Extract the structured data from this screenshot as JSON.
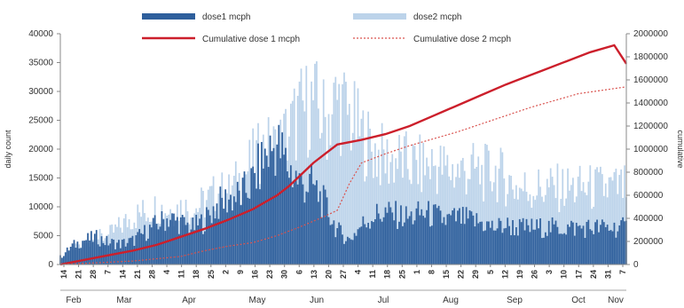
{
  "chart_data": {
    "type": "bar",
    "title": "",
    "xlabel": "",
    "ylabel_left": "daily count",
    "ylabel_right": "cumulative",
    "ylim_left": [
      0,
      40000
    ],
    "ylim_right": [
      0,
      2000000
    ],
    "y_ticks_left": [
      "0",
      "5000",
      "10000",
      "15000",
      "20000",
      "25000",
      "30000",
      "35000",
      "40000"
    ],
    "y_ticks_right": [
      "0",
      "200000",
      "400000",
      "600000",
      "800000",
      "1000000",
      "1200000",
      "1400000",
      "1600000",
      "1800000",
      "2000000"
    ],
    "legend": {
      "dose1": "dose1 mcph",
      "dose2": "dose2 mcph",
      "cum1": "Cumulative dose 1 mcph",
      "cum2": "Cumulative dose 2 mcph"
    },
    "colors": {
      "dose1": "#2e5f9c",
      "dose2": "#bcd3ea",
      "cum1": "#cc1f2b",
      "cum2": "#d9534f"
    },
    "months": [
      "Feb",
      "Mar",
      "Apr",
      "May",
      "Jun",
      "Jul",
      "Aug",
      "Sep",
      "Oct",
      "Nov"
    ],
    "date_labels": [
      "14",
      "21",
      "28",
      "7",
      "14",
      "21",
      "28",
      "4",
      "11",
      "18",
      "25",
      "2",
      "9",
      "16",
      "23",
      "30",
      "6",
      "13",
      "20",
      "27",
      "4",
      "11",
      "18",
      "25",
      "1",
      "8",
      "15",
      "22",
      "29",
      "5",
      "12",
      "19",
      "26",
      "3",
      "10",
      "17",
      "24",
      "31",
      "7"
    ],
    "series": [
      {
        "name": "dose1 mcph",
        "kind": "daily",
        "points": [
          [
            0,
            1500
          ],
          [
            7,
            3800
          ],
          [
            14,
            5000
          ],
          [
            21,
            5500
          ],
          [
            28,
            4500
          ],
          [
            35,
            4200
          ],
          [
            42,
            4800
          ],
          [
            49,
            6500
          ],
          [
            56,
            8200
          ],
          [
            63,
            9500
          ],
          [
            70,
            8500
          ],
          [
            77,
            7500
          ],
          [
            84,
            9000
          ],
          [
            91,
            12000
          ],
          [
            98,
            13500
          ],
          [
            105,
            14000
          ],
          [
            112,
            17000
          ],
          [
            119,
            22000
          ],
          [
            126,
            24500
          ],
          [
            133,
            19500
          ],
          [
            140,
            16500
          ],
          [
            147,
            16000
          ],
          [
            154,
            12000
          ],
          [
            161,
            7000
          ],
          [
            168,
            5000
          ],
          [
            175,
            8000
          ],
          [
            182,
            10000
          ],
          [
            189,
            10500
          ],
          [
            196,
            10000
          ],
          [
            203,
            9500
          ],
          [
            210,
            10500
          ],
          [
            217,
            10000
          ],
          [
            224,
            9000
          ],
          [
            231,
            9500
          ],
          [
            238,
            9000
          ],
          [
            245,
            8500
          ],
          [
            252,
            7500
          ],
          [
            259,
            8000
          ],
          [
            266,
            7500
          ]
        ]
      },
      {
        "name": "dose2 mcph",
        "kind": "daily",
        "points": [
          [
            0,
            1200
          ],
          [
            7,
            3000
          ],
          [
            14,
            4500
          ],
          [
            21,
            5500
          ],
          [
            28,
            6000
          ],
          [
            35,
            8000
          ],
          [
            42,
            10000
          ],
          [
            49,
            11000
          ],
          [
            56,
            12000
          ],
          [
            63,
            11500
          ],
          [
            70,
            12000
          ],
          [
            77,
            11500
          ],
          [
            84,
            13000
          ],
          [
            91,
            15000
          ],
          [
            98,
            15000
          ],
          [
            105,
            18000
          ],
          [
            112,
            21500
          ],
          [
            119,
            24000
          ],
          [
            126,
            24000
          ],
          [
            133,
            28000
          ],
          [
            140,
            32000
          ],
          [
            147,
            34000
          ],
          [
            154,
            30000
          ],
          [
            161,
            34500
          ],
          [
            168,
            31000
          ],
          [
            175,
            27000
          ],
          [
            182,
            24000
          ],
          [
            189,
            22000
          ],
          [
            196,
            22000
          ],
          [
            203,
            21000
          ],
          [
            210,
            20500
          ],
          [
            217,
            21000
          ],
          [
            224,
            20000
          ],
          [
            231,
            19500
          ],
          [
            238,
            20000
          ],
          [
            245,
            19000
          ],
          [
            252,
            19500
          ],
          [
            259,
            18000
          ],
          [
            266,
            16000
          ]
        ]
      },
      {
        "name": "Cumulative dose 1 mcph",
        "kind": "cumulative",
        "points": [
          [
            0,
            0
          ],
          [
            14,
            40000
          ],
          [
            28,
            80000
          ],
          [
            42,
            120000
          ],
          [
            56,
            170000
          ],
          [
            70,
            240000
          ],
          [
            84,
            310000
          ],
          [
            98,
            390000
          ],
          [
            112,
            480000
          ],
          [
            126,
            600000
          ],
          [
            133,
            680000
          ],
          [
            140,
            780000
          ],
          [
            147,
            880000
          ],
          [
            154,
            960000
          ],
          [
            161,
            1040000
          ],
          [
            175,
            1080000
          ],
          [
            189,
            1130000
          ],
          [
            203,
            1200000
          ],
          [
            217,
            1290000
          ],
          [
            231,
            1380000
          ],
          [
            245,
            1470000
          ],
          [
            259,
            1560000
          ],
          [
            266,
            1600000
          ],
          [
            280,
            1680000
          ],
          [
            294,
            1760000
          ],
          [
            308,
            1840000
          ],
          [
            322,
            1900000
          ],
          [
            329,
            1740000
          ]
        ]
      },
      {
        "name": "Cumulative dose 2 mcph",
        "kind": "cumulative",
        "points": [
          [
            0,
            0
          ],
          [
            42,
            30000
          ],
          [
            70,
            70000
          ],
          [
            84,
            120000
          ],
          [
            98,
            160000
          ],
          [
            112,
            190000
          ],
          [
            126,
            250000
          ],
          [
            140,
            330000
          ],
          [
            154,
            420000
          ],
          [
            161,
            470000
          ],
          [
            168,
            700000
          ],
          [
            175,
            880000
          ],
          [
            189,
            960000
          ],
          [
            203,
            1030000
          ],
          [
            217,
            1090000
          ],
          [
            231,
            1150000
          ],
          [
            245,
            1220000
          ],
          [
            259,
            1290000
          ],
          [
            273,
            1360000
          ],
          [
            287,
            1420000
          ],
          [
            301,
            1480000
          ],
          [
            315,
            1510000
          ],
          [
            329,
            1540000
          ]
        ]
      }
    ]
  }
}
